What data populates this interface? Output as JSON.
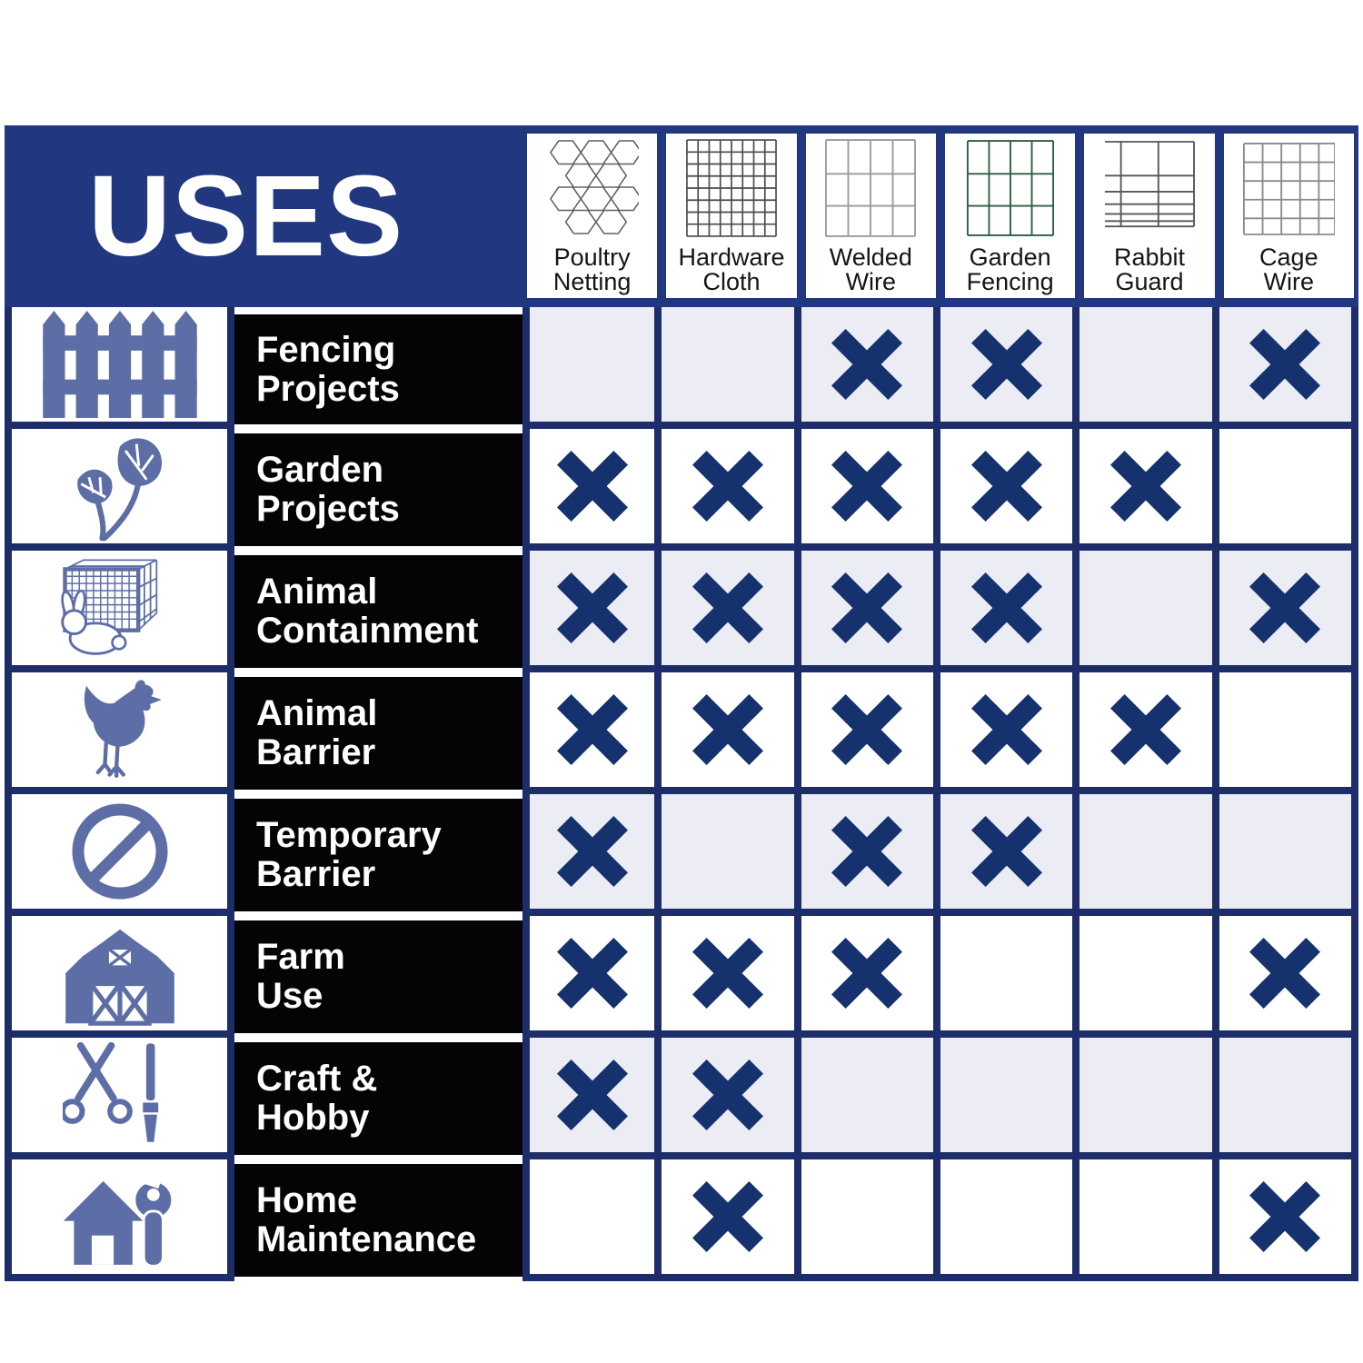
{
  "title": "USES",
  "chart_data": {
    "type": "table",
    "title": "USES",
    "columns": [
      "Poultry Netting",
      "Hardware Cloth",
      "Welded Wire",
      "Garden Fencing",
      "Rabbit Guard",
      "Cage Wire"
    ],
    "rows": [
      "Fencing Projects",
      "Garden Projects",
      "Animal Containment",
      "Animal Barrier",
      "Temporary Barrier",
      "Farm Use",
      "Craft & Hobby",
      "Home Maintenance"
    ],
    "mark_symbol": "X",
    "marks": [
      [
        0,
        0,
        1,
        1,
        0,
        1
      ],
      [
        1,
        1,
        1,
        1,
        1,
        0
      ],
      [
        1,
        1,
        1,
        1,
        0,
        1
      ],
      [
        1,
        1,
        1,
        1,
        1,
        0
      ],
      [
        1,
        0,
        1,
        1,
        0,
        0
      ],
      [
        1,
        1,
        1,
        0,
        0,
        1
      ],
      [
        1,
        1,
        0,
        0,
        0,
        0
      ],
      [
        0,
        1,
        0,
        0,
        0,
        1
      ]
    ]
  },
  "columns": [
    {
      "label_lines": [
        "Poultry",
        "Netting"
      ],
      "icon": "poultry-netting-mesh-icon"
    },
    {
      "label_lines": [
        "Hardware",
        "Cloth"
      ],
      "icon": "hardware-cloth-mesh-icon"
    },
    {
      "label_lines": [
        "Welded",
        "Wire"
      ],
      "icon": "welded-wire-mesh-icon"
    },
    {
      "label_lines": [
        "Garden",
        "Fencing"
      ],
      "icon": "garden-fencing-mesh-icon"
    },
    {
      "label_lines": [
        "Rabbit",
        "Guard"
      ],
      "icon": "rabbit-guard-mesh-icon"
    },
    {
      "label_lines": [
        "Cage",
        "Wire"
      ],
      "icon": "cage-wire-mesh-icon"
    }
  ],
  "rows": [
    {
      "label_lines": [
        "Fencing",
        "Projects"
      ],
      "icon": "fence-icon",
      "marks": [
        false,
        false,
        true,
        true,
        false,
        true
      ]
    },
    {
      "label_lines": [
        "Garden",
        "Projects"
      ],
      "icon": "plant-leaves-icon",
      "marks": [
        true,
        true,
        true,
        true,
        true,
        false
      ]
    },
    {
      "label_lines": [
        "Animal",
        "Containment"
      ],
      "icon": "cage-rabbit-icon",
      "marks": [
        true,
        true,
        true,
        true,
        false,
        true
      ]
    },
    {
      "label_lines": [
        "Animal",
        "Barrier"
      ],
      "icon": "chicken-icon",
      "marks": [
        true,
        true,
        true,
        true,
        true,
        false
      ]
    },
    {
      "label_lines": [
        "Temporary",
        "Barrier"
      ],
      "icon": "no-sign-icon",
      "marks": [
        true,
        false,
        true,
        true,
        false,
        false
      ]
    },
    {
      "label_lines": [
        "Farm",
        "Use"
      ],
      "icon": "barn-icon",
      "marks": [
        true,
        true,
        true,
        false,
        false,
        true
      ]
    },
    {
      "label_lines": [
        "Craft &",
        "Hobby"
      ],
      "icon": "scissors-brush-icon",
      "marks": [
        true,
        true,
        false,
        false,
        false,
        false
      ]
    },
    {
      "label_lines": [
        "Home",
        "Maintenance"
      ],
      "icon": "house-wrench-icon",
      "marks": [
        false,
        true,
        false,
        false,
        false,
        true
      ]
    }
  ],
  "colors": {
    "header_navy": "#21377f",
    "grid_navy": "#1c2d69",
    "x_navy": "#15326e",
    "cell_shade": "#ebecf4",
    "label_black": "#040404",
    "icon_slate": "#5d6ea6"
  }
}
